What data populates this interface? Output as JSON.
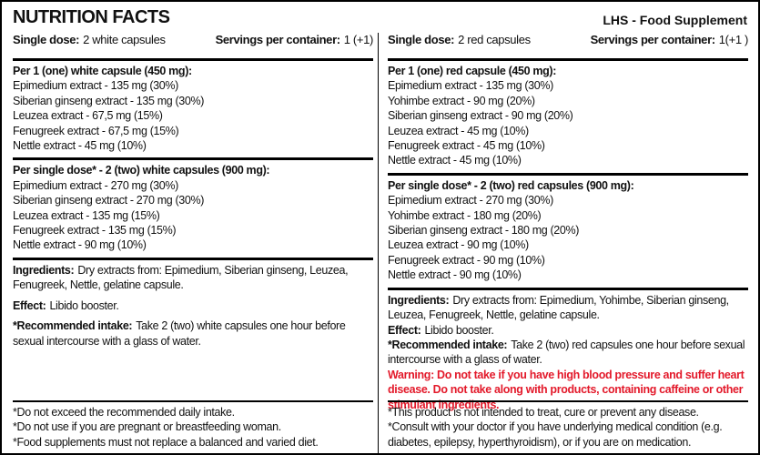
{
  "header": {
    "title": "NUTRITION FACTS",
    "subtitle": "LHS - Food Supplement"
  },
  "columns": [
    {
      "dose": {
        "label": "Single dose:",
        "value": "2 white capsules"
      },
      "servings": {
        "label": "Servings per container:",
        "value": "1 (+1)"
      },
      "sections": [
        {
          "heading": "Per 1 (one) white capsule (450 mg):",
          "items": [
            "Epimedium extract - 135 mg (30%)",
            "Siberian ginseng extract - 135 mg (30%)",
            "Leuzea extract - 67,5 mg (15%)",
            "Fenugreek extract - 67,5 mg (15%)",
            "Nettle extract - 45 mg (10%)"
          ]
        },
        {
          "heading": "Per single dose* - 2 (two) white capsules (900 mg):",
          "items": [
            "Epimedium extract - 270 mg (30%)",
            "Siberian ginseng extract - 270 mg (30%)",
            "Leuzea extract - 135 mg (15%)",
            "Fenugreek extract - 135 mg (15%)",
            "Nettle extract - 90 mg (10%)"
          ]
        }
      ],
      "ingredients": {
        "label": "Ingredients:",
        "text": "Dry extracts from: Epimedium, Siberian ginseng, Leuzea, Fenugreek, Nettle, gelatine capsule."
      },
      "effect": {
        "label": "Effect:",
        "text": "Libido booster."
      },
      "intake": {
        "label": "*Recommended intake:",
        "text": "Take 2 (two) white capsules one hour before sexual intercourse with a glass of water."
      },
      "footer": [
        "*Do not exceed the recommended daily intake.",
        "*Do not use if you are pregnant or breastfeeding woman.",
        "*Food supplements must not replace a balanced and varied diet."
      ]
    },
    {
      "dose": {
        "label": "Single dose:",
        "value": "2 red capsules"
      },
      "servings": {
        "label": "Servings per container:",
        "value": "1(+1 )"
      },
      "sections": [
        {
          "heading": "Per 1 (one) red capsule (450 mg):",
          "items": [
            "Epimedium extract - 135 mg (30%)",
            "Yohimbe extract - 90 mg (20%)",
            "Siberian ginseng extract - 90 mg (20%)",
            "Leuzea extract - 45 mg (10%)",
            "Fenugreek extract - 45 mg (10%)",
            "Nettle extract - 45 mg (10%)"
          ]
        },
        {
          "heading": "Per single dose* - 2 (two) red capsules (900 mg):",
          "items": [
            "Epimedium extract - 270 mg (30%)",
            "Yohimbe extract - 180 mg (20%)",
            "Siberian ginseng extract - 180 mg (20%)",
            "Leuzea extract - 90 mg (10%)",
            "Fenugreek extract - 90 mg (10%)",
            "Nettle extract - 90 mg (10%)"
          ]
        }
      ],
      "ingredients": {
        "label": "Ingredients:",
        "text": "Dry extracts from: Epimedium, Yohimbe, Siberian ginseng, Leuzea, Fenugreek, Nettle, gelatine capsule."
      },
      "effect": {
        "label": "Effect:",
        "text": "Libido booster."
      },
      "intake": {
        "label": "*Recommended intake:",
        "text": "Take 2 (two) red capsules one hour before sexual intercourse with a glass of water."
      },
      "warning": "Warning: Do not take if you have high blood pressure and suffer heart disease. Do not take along with products, containing caffeine or other stimulant ingredients.",
      "footer": [
        "*This product is not intended to treat, cure or prevent any disease.",
        "*Consult with your doctor if you have  underlying medical condition (e.g. diabetes, epilepsy, hyperthyroidism), or if you are on medication."
      ]
    }
  ]
}
